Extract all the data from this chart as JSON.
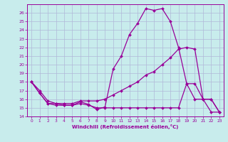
{
  "xlabel": "Windchill (Refroidissement éolien,°C)",
  "bg_color": "#c8ecec",
  "grid_color": "#b0b8d8",
  "line_color": "#990099",
  "xlim": [
    -0.5,
    23.5
  ],
  "ylim": [
    14,
    27
  ],
  "yticks": [
    14,
    15,
    16,
    17,
    18,
    19,
    20,
    21,
    22,
    23,
    24,
    25,
    26
  ],
  "xticks": [
    0,
    1,
    2,
    3,
    4,
    5,
    6,
    7,
    8,
    9,
    10,
    11,
    12,
    13,
    14,
    15,
    16,
    17,
    18,
    19,
    20,
    21,
    22,
    23
  ],
  "series1_x": [
    0,
    1,
    2,
    3,
    4,
    5,
    6,
    7,
    8,
    9,
    10,
    11,
    12,
    13,
    14,
    15,
    16,
    17,
    18,
    19,
    20,
    21,
    22,
    23
  ],
  "series1_y": [
    18.0,
    16.7,
    15.5,
    15.3,
    15.3,
    15.3,
    15.7,
    15.4,
    14.8,
    15.1,
    19.5,
    21.0,
    23.5,
    24.8,
    26.5,
    26.3,
    26.5,
    25.0,
    22.0,
    17.8,
    16.0,
    16.0,
    14.5,
    14.5
  ],
  "series2_x": [
    0,
    1,
    2,
    3,
    4,
    5,
    6,
    7,
    8,
    9,
    10,
    11,
    12,
    13,
    14,
    15,
    16,
    17,
    18,
    19,
    20,
    21,
    22,
    23
  ],
  "series2_y": [
    18.0,
    16.7,
    15.5,
    15.5,
    15.5,
    15.5,
    15.8,
    15.8,
    15.8,
    16.0,
    16.5,
    17.0,
    17.5,
    18.0,
    18.8,
    19.2,
    20.0,
    20.8,
    21.8,
    22.0,
    21.8,
    16.0,
    16.0,
    14.5
  ],
  "series3_x": [
    0,
    1,
    2,
    3,
    4,
    5,
    6,
    7,
    8,
    9,
    10,
    11,
    12,
    13,
    14,
    15,
    16,
    17,
    18,
    19,
    20,
    21,
    22,
    23
  ],
  "series3_y": [
    18.0,
    17.0,
    15.8,
    15.5,
    15.3,
    15.3,
    15.5,
    15.3,
    15.0,
    15.0,
    15.0,
    15.0,
    15.0,
    15.0,
    15.0,
    15.0,
    15.0,
    15.0,
    15.0,
    17.8,
    17.8,
    16.0,
    16.0,
    14.5
  ]
}
